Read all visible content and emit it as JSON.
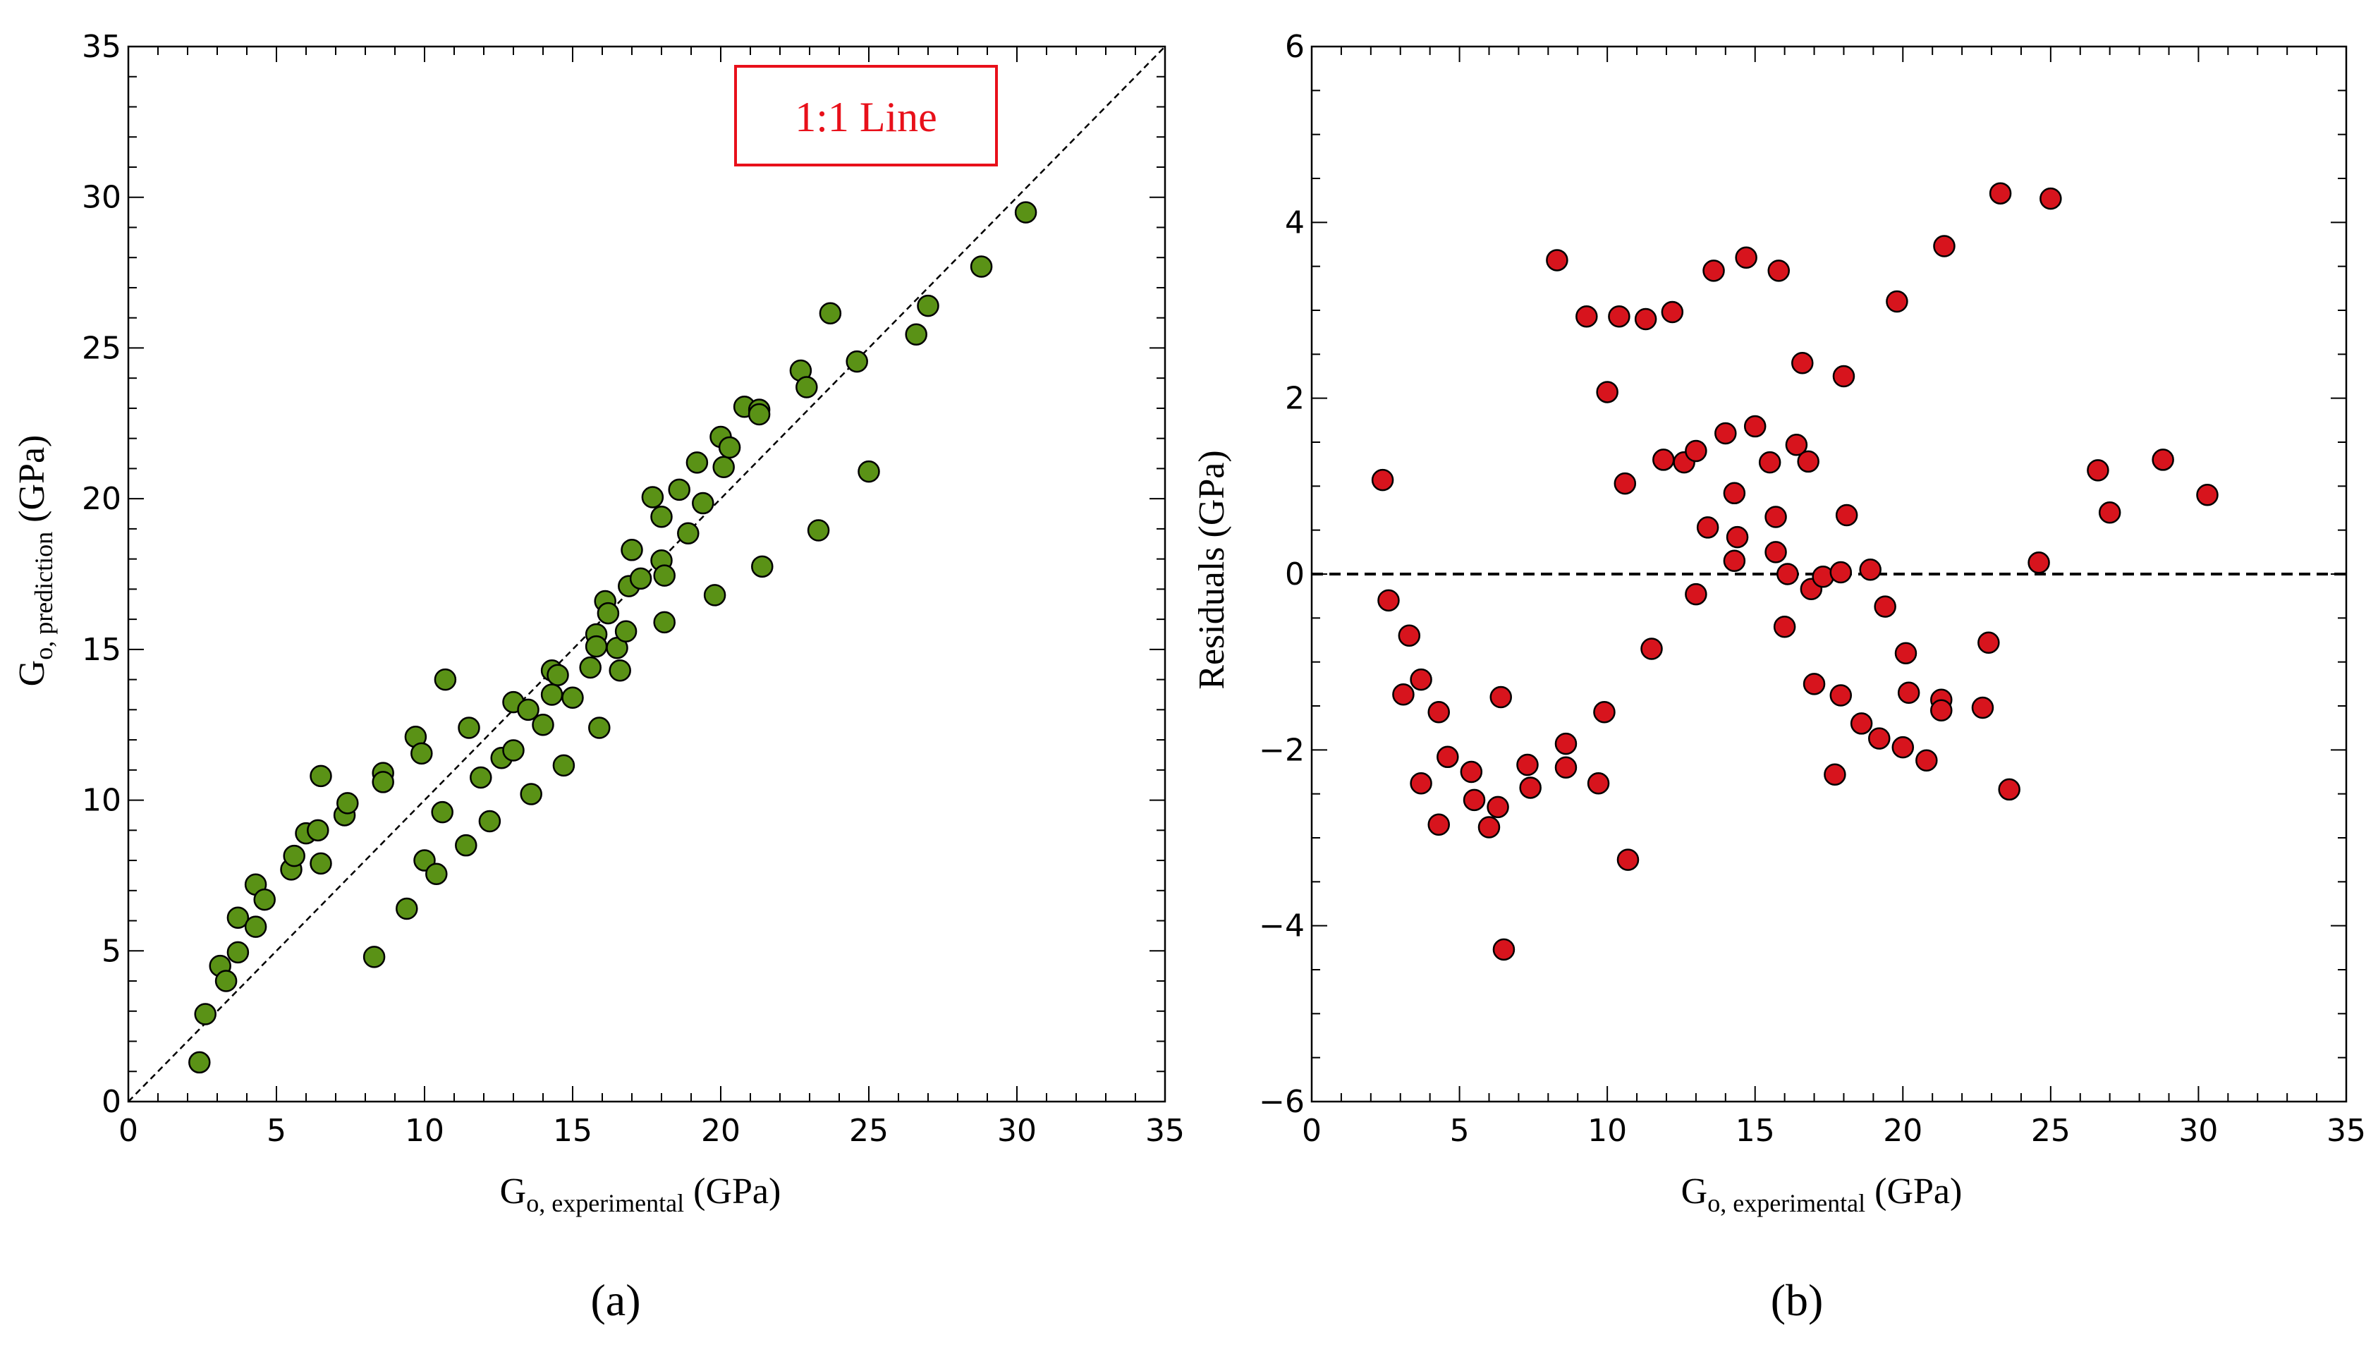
{
  "chart_data": [
    {
      "type": "scatter",
      "panel_label": "(a)",
      "xlabel": {
        "main": "G",
        "sub": "o, experimental",
        "unit": " (GPa)"
      },
      "ylabel": {
        "main": "G",
        "sub": "o, prediction",
        "unit": " (GPa)"
      },
      "xlim": [
        0,
        35
      ],
      "ylim": [
        0,
        35
      ],
      "xticks": [
        0,
        5,
        10,
        15,
        20,
        25,
        30,
        35
      ],
      "yticks": [
        0,
        5,
        10,
        15,
        20,
        25,
        30,
        35
      ],
      "reference_line": {
        "label": "1:1 Line",
        "from": [
          0,
          0
        ],
        "to": [
          35,
          35
        ],
        "style": "dashed"
      },
      "marker_color": "#5a9216",
      "annotation_color": "#e8101a",
      "points": [
        [
          2.4,
          1.3
        ],
        [
          2.6,
          2.9
        ],
        [
          3.1,
          4.5
        ],
        [
          3.3,
          4.0
        ],
        [
          3.7,
          6.1
        ],
        [
          3.7,
          4.95
        ],
        [
          4.3,
          5.8
        ],
        [
          4.3,
          7.2
        ],
        [
          4.6,
          6.7
        ],
        [
          5.5,
          7.7
        ],
        [
          5.6,
          8.15
        ],
        [
          6.0,
          8.9
        ],
        [
          6.4,
          9.0
        ],
        [
          6.5,
          7.9
        ],
        [
          6.5,
          10.8
        ],
        [
          7.3,
          9.5
        ],
        [
          7.4,
          9.9
        ],
        [
          8.3,
          4.8
        ],
        [
          8.6,
          10.9
        ],
        [
          8.6,
          10.6
        ],
        [
          9.4,
          6.4
        ],
        [
          9.7,
          12.1
        ],
        [
          9.9,
          11.55
        ],
        [
          10.0,
          8.0
        ],
        [
          10.4,
          7.55
        ],
        [
          10.6,
          9.6
        ],
        [
          10.7,
          14.0
        ],
        [
          11.4,
          8.5
        ],
        [
          11.5,
          12.4
        ],
        [
          11.9,
          10.75
        ],
        [
          12.2,
          9.3
        ],
        [
          12.6,
          11.4
        ],
        [
          13.0,
          11.65
        ],
        [
          13.0,
          13.25
        ],
        [
          13.5,
          13.0
        ],
        [
          13.6,
          10.2
        ],
        [
          14.0,
          12.5
        ],
        [
          14.3,
          13.5
        ],
        [
          14.3,
          14.3
        ],
        [
          14.5,
          14.15
        ],
        [
          14.7,
          11.15
        ],
        [
          15.0,
          13.4
        ],
        [
          15.6,
          14.4
        ],
        [
          15.8,
          15.5
        ],
        [
          15.8,
          15.1
        ],
        [
          15.9,
          12.4
        ],
        [
          16.1,
          16.6
        ],
        [
          16.2,
          16.2
        ],
        [
          16.5,
          15.05
        ],
        [
          16.6,
          14.3
        ],
        [
          16.8,
          15.6
        ],
        [
          16.9,
          17.1
        ],
        [
          17.0,
          18.3
        ],
        [
          17.3,
          17.35
        ],
        [
          17.7,
          20.05
        ],
        [
          18.0,
          17.95
        ],
        [
          18.0,
          19.4
        ],
        [
          18.1,
          15.9
        ],
        [
          18.1,
          17.45
        ],
        [
          18.6,
          20.3
        ],
        [
          18.9,
          18.85
        ],
        [
          19.2,
          21.2
        ],
        [
          19.4,
          19.85
        ],
        [
          19.8,
          16.8
        ],
        [
          20.0,
          22.05
        ],
        [
          20.1,
          21.05
        ],
        [
          20.3,
          21.7
        ],
        [
          20.8,
          23.05
        ],
        [
          21.3,
          22.95
        ],
        [
          21.3,
          22.8
        ],
        [
          21.4,
          17.75
        ],
        [
          22.7,
          24.25
        ],
        [
          22.9,
          23.7
        ],
        [
          23.3,
          18.95
        ],
        [
          23.7,
          26.15
        ],
        [
          24.6,
          24.55
        ],
        [
          25.0,
          20.9
        ],
        [
          26.6,
          25.45
        ],
        [
          27.0,
          26.4
        ],
        [
          28.8,
          27.7
        ],
        [
          30.3,
          29.5
        ]
      ]
    },
    {
      "type": "scatter",
      "panel_label": "(b)",
      "xlabel": {
        "main": "G",
        "sub": "o, experimental",
        "unit": " (GPa)"
      },
      "ylabel": {
        "main": "Residuals (GPa)",
        "sub": "",
        "unit": ""
      },
      "xlim": [
        0,
        35
      ],
      "ylim": [
        -6,
        6
      ],
      "xticks": [
        0,
        5,
        10,
        15,
        20,
        25,
        30,
        35
      ],
      "yticks": [
        -6,
        -4,
        -2,
        0,
        2,
        4,
        6
      ],
      "ytick_labels": [
        "−6",
        "−4",
        "−2",
        "0",
        "2",
        "4",
        "6"
      ],
      "reference_line": {
        "label": "",
        "from": [
          0,
          0
        ],
        "to": [
          35,
          0
        ],
        "style": "dashed"
      },
      "marker_color": "#d7141d",
      "points": [
        [
          2.4,
          1.07
        ],
        [
          2.6,
          -0.3
        ],
        [
          3.1,
          -1.37
        ],
        [
          3.3,
          -0.7
        ],
        [
          3.7,
          -1.2
        ],
        [
          3.7,
          -2.38
        ],
        [
          4.3,
          -1.57
        ],
        [
          4.3,
          -2.85
        ],
        [
          4.6,
          -2.08
        ],
        [
          5.4,
          -2.25
        ],
        [
          5.5,
          -2.57
        ],
        [
          6.0,
          -2.88
        ],
        [
          6.3,
          -2.65
        ],
        [
          6.4,
          -1.4
        ],
        [
          6.5,
          -4.27
        ],
        [
          7.3,
          -2.17
        ],
        [
          7.4,
          -2.43
        ],
        [
          8.3,
          3.57
        ],
        [
          8.6,
          -1.93
        ],
        [
          8.6,
          -2.2
        ],
        [
          9.3,
          2.93
        ],
        [
          9.7,
          -2.38
        ],
        [
          9.9,
          -1.57
        ],
        [
          10.0,
          2.07
        ],
        [
          10.4,
          2.93
        ],
        [
          10.6,
          1.03
        ],
        [
          10.7,
          -3.25
        ],
        [
          11.3,
          2.9
        ],
        [
          11.5,
          -0.85
        ],
        [
          11.9,
          1.3
        ],
        [
          12.2,
          2.98
        ],
        [
          12.6,
          1.27
        ],
        [
          13.0,
          1.4
        ],
        [
          13.0,
          -0.23
        ],
        [
          13.4,
          0.53
        ],
        [
          13.6,
          3.45
        ],
        [
          14.0,
          1.6
        ],
        [
          14.3,
          0.92
        ],
        [
          14.3,
          0.15
        ],
        [
          14.4,
          0.42
        ],
        [
          14.7,
          3.6
        ],
        [
          15.0,
          1.68
        ],
        [
          15.5,
          1.27
        ],
        [
          15.7,
          0.65
        ],
        [
          15.7,
          0.25
        ],
        [
          15.8,
          3.45
        ],
        [
          16.0,
          -0.6
        ],
        [
          16.1,
          0.0
        ],
        [
          16.4,
          1.47
        ],
        [
          16.6,
          2.4
        ],
        [
          16.8,
          1.28
        ],
        [
          16.9,
          -0.17
        ],
        [
          17.0,
          -1.25
        ],
        [
          17.3,
          -0.03
        ],
        [
          17.7,
          -2.28
        ],
        [
          17.9,
          0.02
        ],
        [
          17.9,
          -1.38
        ],
        [
          18.0,
          2.25
        ],
        [
          18.1,
          0.67
        ],
        [
          18.6,
          -1.7
        ],
        [
          18.9,
          0.05
        ],
        [
          19.2,
          -1.87
        ],
        [
          19.4,
          -0.37
        ],
        [
          19.8,
          3.1
        ],
        [
          20.0,
          -1.97
        ],
        [
          20.1,
          -0.9
        ],
        [
          20.2,
          -1.35
        ],
        [
          20.8,
          -2.12
        ],
        [
          21.3,
          -1.43
        ],
        [
          21.3,
          -1.55
        ],
        [
          21.4,
          3.73
        ],
        [
          22.7,
          -1.52
        ],
        [
          22.9,
          -0.78
        ],
        [
          23.3,
          4.33
        ],
        [
          23.6,
          -2.45
        ],
        [
          24.6,
          0.13
        ],
        [
          25.0,
          4.27
        ],
        [
          26.6,
          1.18
        ],
        [
          27.0,
          0.7
        ],
        [
          28.8,
          1.3
        ],
        [
          30.3,
          0.9
        ]
      ]
    }
  ]
}
